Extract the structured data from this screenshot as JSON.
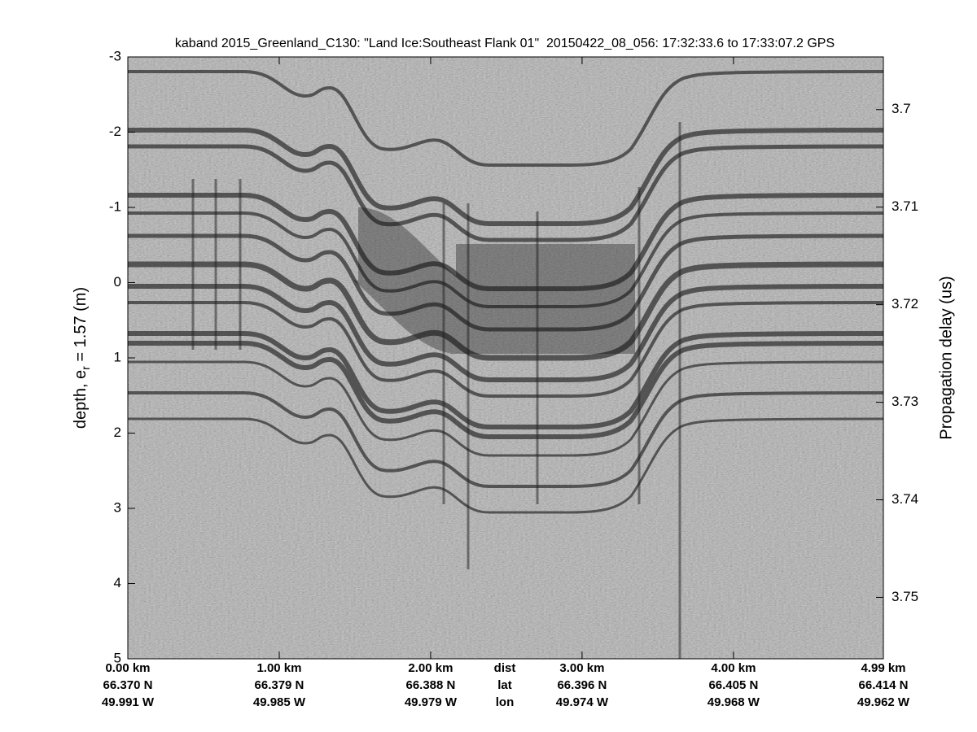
{
  "chart_data": {
    "type": "image",
    "title": "kaband 2015_Greenland_C130: \"Land Ice:Southeast Flank 01\"  20150422_08_056: 17:32:33.6 to 17:33:07.2 GPS",
    "ylabel": {
      "text": "depth, e",
      "subscript": "r",
      "suffix": " = 1.57 (m)"
    },
    "y2label": "Propagation delay (us)",
    "ylim": [
      -3,
      5
    ],
    "yticks": [
      -3,
      -2,
      -1,
      0,
      1,
      2,
      3,
      4,
      5
    ],
    "y2lim": [
      3.6946,
      3.7563
    ],
    "y2ticks": [
      3.7,
      3.71,
      3.72,
      3.73,
      3.74,
      3.75
    ],
    "xlim": [
      0,
      4.99
    ],
    "xticks": [
      {
        "value": 0,
        "label": "0.00 km"
      },
      {
        "value": 1,
        "label": "1.00 km"
      },
      {
        "value": 2,
        "label": "2.00 km"
      },
      {
        "value": 3,
        "label": "3.00 km"
      },
      {
        "value": 4,
        "label": "4.00 km"
      },
      {
        "value": 4.99,
        "label": "4.99 km"
      }
    ],
    "lat_labels": [
      "66.370 N",
      "66.379 N",
      "66.388 N",
      "66.396 N",
      "66.405 N",
      "66.414 N"
    ],
    "lon_labels": [
      "49.991 W",
      "49.985 W",
      "49.979 W",
      "49.974 W",
      "49.968 W",
      "49.962 W"
    ],
    "row_labels": [
      "dist",
      "lat",
      "lon"
    ]
  }
}
